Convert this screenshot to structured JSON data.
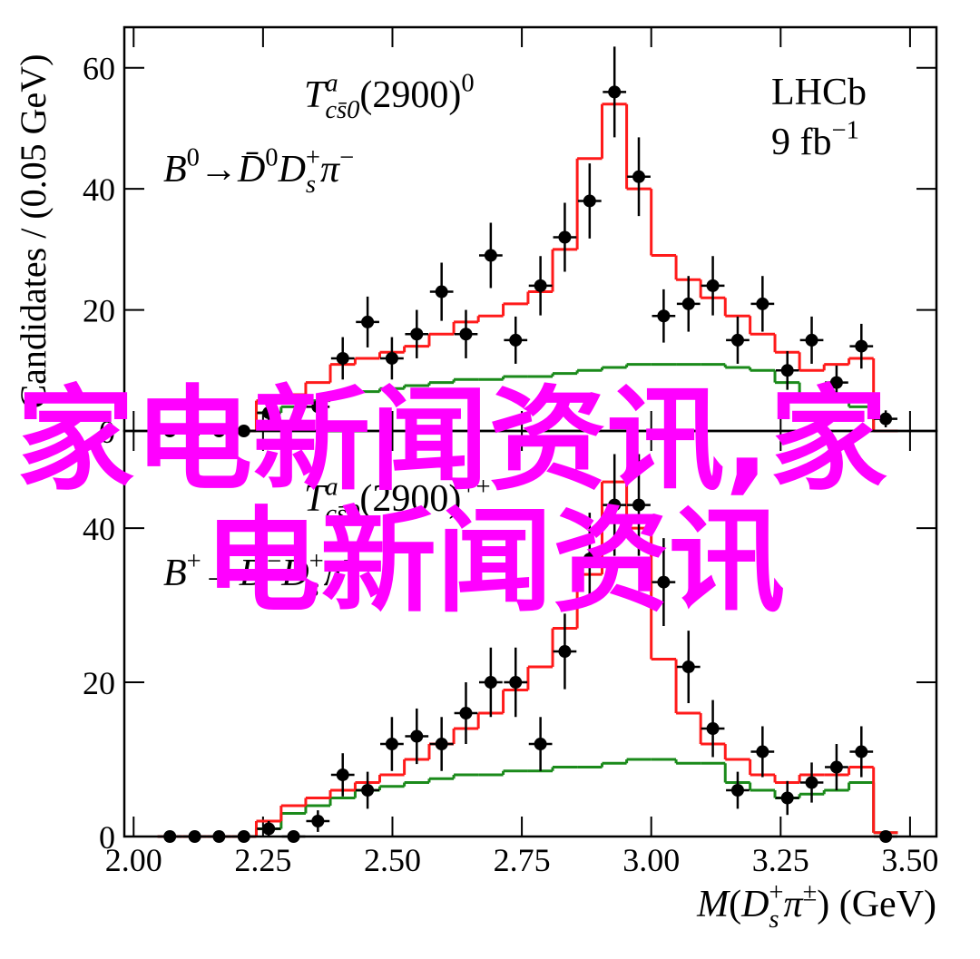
{
  "chart_data": [
    {
      "type": "errorbar",
      "annotations": [
        [
          {
            "text": "T",
            "pos": "base",
            "italic": true
          },
          {
            "text": "a",
            "pos": "sup",
            "italic": true
          },
          {
            "text": "cs̄0",
            "pos": "sub",
            "italic": true
          },
          {
            "text": "(2900)",
            "pos": "base",
            "italic": false
          },
          {
            "text": "0",
            "pos": "sup",
            "italic": false
          }
        ],
        [
          {
            "text": "B",
            "pos": "base",
            "italic": true
          },
          {
            "text": "0",
            "pos": "sup",
            "italic": false
          },
          {
            "text": "→",
            "pos": "base",
            "italic": false
          },
          {
            "text": "D̄",
            "pos": "base",
            "italic": true
          },
          {
            "text": "0",
            "pos": "sup",
            "italic": false
          },
          {
            "text": "D",
            "pos": "base",
            "italic": true
          },
          {
            "text": "+",
            "pos": "sup",
            "italic": false
          },
          {
            "text": "s",
            "pos": "sub",
            "italic": true
          },
          {
            "text": " π",
            "pos": "base",
            "italic": true
          },
          {
            "text": "−",
            "pos": "sup",
            "italic": false
          }
        ],
        [
          {
            "text": "LHCb",
            "pos": "base",
            "italic": false
          }
        ],
        [
          {
            "text": "9 fb",
            "pos": "base",
            "italic": false
          },
          {
            "text": "−1",
            "pos": "sup",
            "italic": false
          }
        ]
      ],
      "y_label": "Candidates / (0.05 GeV)",
      "xlim": [
        1.982,
        3.551
      ],
      "xticks": [
        {
          "value": 2,
          "label": "2.00"
        },
        {
          "value": 2.25,
          "label": "2.25"
        },
        {
          "value": 2.5,
          "label": "2.50"
        },
        {
          "value": 2.75,
          "label": "2.75"
        },
        {
          "value": 3,
          "label": "3.00"
        },
        {
          "value": 3.25,
          "label": "3.25"
        },
        {
          "value": 3.5,
          "label": "3.50"
        }
      ],
      "ylim": [
        0,
        66.7
      ],
      "yticks": [
        0,
        20,
        40,
        60
      ],
      "x": [
        2.07,
        2.118,
        2.165,
        2.213,
        2.261,
        2.309,
        2.356,
        2.404,
        2.452,
        2.499,
        2.547,
        2.595,
        2.642,
        2.69,
        2.738,
        2.786,
        2.833,
        2.881,
        2.929,
        2.976,
        3.024,
        3.072,
        3.119,
        3.167,
        3.215,
        3.263,
        3.31,
        3.358,
        3.406,
        3.453
      ],
      "series": [
        {
          "style": "step",
          "color": "#1a8a1a",
          "values": [
            0,
            0,
            0,
            0,
            3,
            4,
            5,
            6,
            6.5,
            7,
            7.5,
            8,
            8.5,
            8.5,
            9,
            9,
            9.5,
            10,
            10.5,
            11,
            11,
            11,
            11,
            10.5,
            10,
            8,
            6,
            5,
            4,
            0
          ]
        },
        {
          "style": "step",
          "color": "#ff1a1a",
          "values": [
            0,
            0,
            0,
            0,
            5,
            6,
            8,
            11,
            12,
            13,
            14,
            16,
            18,
            19,
            21,
            23,
            30,
            45,
            54,
            40,
            29,
            25,
            22,
            19,
            16,
            13,
            10,
            11,
            12,
            0
          ]
        },
        {
          "style": "points",
          "color": "#000000",
          "values": [
            0,
            0,
            0,
            0,
            3,
            1,
            4,
            12,
            18,
            12,
            16,
            23,
            16,
            29,
            15,
            24,
            32,
            38,
            56,
            42,
            19,
            21,
            24,
            15,
            21,
            10,
            15,
            8,
            14,
            2
          ],
          "errors": [
            0,
            0,
            0,
            0,
            1.7,
            1,
            2,
            3.5,
            4.2,
            3.5,
            4,
            4.8,
            4,
            5.4,
            3.9,
            4.9,
            5.7,
            6.2,
            7.5,
            6.5,
            4.4,
            4.6,
            4.9,
            3.9,
            4.6,
            3.2,
            3.9,
            2.8,
            3.7,
            1.4
          ]
        }
      ]
    },
    {
      "type": "errorbar",
      "annotations": [
        [
          {
            "text": "T",
            "pos": "base",
            "italic": true
          },
          {
            "text": "a",
            "pos": "sup",
            "italic": true
          },
          {
            "text": "cs̄0",
            "pos": "sub",
            "italic": true
          },
          {
            "text": "(2900)",
            "pos": "base",
            "italic": false
          },
          {
            "text": "++",
            "pos": "sup",
            "italic": false
          }
        ],
        [
          {
            "text": "B",
            "pos": "base",
            "italic": true
          },
          {
            "text": "+",
            "pos": "sup",
            "italic": false
          },
          {
            "text": "→",
            "pos": "base",
            "italic": false
          },
          {
            "text": "D",
            "pos": "base",
            "italic": true
          },
          {
            "text": "−",
            "pos": "sup",
            "italic": false
          },
          {
            "text": "D",
            "pos": "base",
            "italic": true
          },
          {
            "text": "+",
            "pos": "sup",
            "italic": false
          },
          {
            "text": "s",
            "pos": "sub",
            "italic": true
          },
          {
            "text": " π",
            "pos": "base",
            "italic": true
          },
          {
            "text": "+",
            "pos": "sup",
            "italic": false
          }
        ]
      ],
      "x_label": [
        {
          "text": "M",
          "pos": "base",
          "italic": true
        },
        {
          "text": "(",
          "pos": "base",
          "italic": false
        },
        {
          "text": "D",
          "pos": "base",
          "italic": true
        },
        {
          "text": "+",
          "pos": "sup",
          "italic": false
        },
        {
          "text": "s",
          "pos": "sub",
          "italic": true
        },
        {
          "text": " π",
          "pos": "base",
          "italic": true
        },
        {
          "text": "±",
          "pos": "sup",
          "italic": false
        },
        {
          "text": ") (GeV)",
          "pos": "base",
          "italic": false
        }
      ],
      "xlim": [
        1.982,
        3.551
      ],
      "xticks": [
        {
          "value": 2,
          "label": "2.00"
        },
        {
          "value": 2.25,
          "label": "2.25"
        },
        {
          "value": 2.5,
          "label": "2.50"
        },
        {
          "value": 2.75,
          "label": "2.75"
        },
        {
          "value": 3,
          "label": "3.00"
        },
        {
          "value": 3.25,
          "label": "3.25"
        },
        {
          "value": 3.5,
          "label": "3.50"
        }
      ],
      "ylim": [
        0,
        52.6
      ],
      "yticks": [
        0,
        20,
        40
      ],
      "x": [
        2.07,
        2.118,
        2.165,
        2.213,
        2.261,
        2.309,
        2.356,
        2.404,
        2.452,
        2.499,
        2.547,
        2.595,
        2.642,
        2.69,
        2.738,
        2.786,
        2.833,
        2.881,
        2.929,
        2.976,
        3.024,
        3.072,
        3.119,
        3.167,
        3.215,
        3.263,
        3.31,
        3.358,
        3.406,
        3.453
      ],
      "series": [
        {
          "style": "step",
          "color": "#1a8a1a",
          "values": [
            0,
            0,
            0,
            0,
            1,
            3,
            4,
            5,
            6,
            6.5,
            7,
            7.5,
            8,
            8,
            8.5,
            8.5,
            9,
            9,
            9.5,
            10,
            10,
            9.5,
            9.5,
            7,
            6,
            5,
            5.5,
            6,
            7,
            0.5
          ]
        },
        {
          "style": "step",
          "color": "#ff1a1a",
          "values": [
            0,
            0,
            0,
            0,
            2,
            4,
            5,
            6,
            7,
            8,
            10,
            12,
            14,
            16,
            19,
            22,
            27,
            34,
            46,
            40,
            23,
            16,
            12,
            10,
            8,
            7,
            8,
            8,
            9,
            0.5
          ]
        },
        {
          "style": "points",
          "color": "#000000",
          "values": [
            0,
            0,
            0,
            0,
            1,
            0,
            2,
            8,
            6,
            12,
            13,
            12,
            16,
            20,
            20,
            12,
            24,
            36,
            43,
            43,
            33,
            22,
            14,
            6,
            11,
            5,
            7,
            9,
            11,
            0
          ],
          "errors": [
            0,
            0,
            0,
            0,
            1,
            0,
            1.4,
            2.8,
            2.4,
            3.5,
            3.6,
            3.5,
            4,
            4.5,
            4.5,
            3.5,
            4.9,
            6,
            6.6,
            6.6,
            5.7,
            4.7,
            3.7,
            2.4,
            3.3,
            2.2,
            2.6,
            3,
            3.3,
            0
          ]
        }
      ]
    }
  ],
  "overlay": [
    "家电新闻资讯,家",
    "电新闻资讯"
  ]
}
